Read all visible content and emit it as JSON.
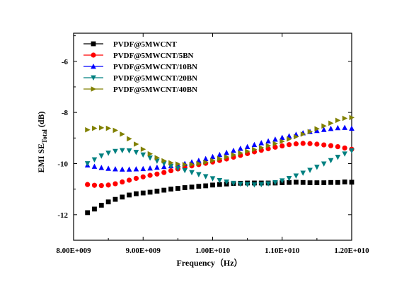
{
  "chart_data": {
    "type": "scatter",
    "title": "",
    "xlabel": "Frequency（Hz）",
    "ylabel_main": "EMI SE",
    "ylabel_sub": "Total",
    "ylabel_unit": " (dB)",
    "xlim": [
      8000000000,
      12000000000
    ],
    "ylim": [
      -13,
      -4.9
    ],
    "xticks": [
      8000000000,
      9000000000,
      10000000000,
      11000000000,
      12000000000
    ],
    "xtick_labels": [
      "8.00E+009",
      "9.00E+009",
      "1.00E+010",
      "1.10E+010",
      "1.20E+010"
    ],
    "yticks": [
      -12,
      -10,
      -8,
      -6
    ],
    "ytick_labels": [
      "-12",
      "-10",
      "-8",
      "-6"
    ],
    "legend_position": "top-left",
    "series": [
      {
        "name": "PVDF@5MWCNT",
        "color": "#000000",
        "marker": "square",
        "x": [
          8200000000.0,
          8300000000.0,
          8400000000.0,
          8500000000.0,
          8600000000.0,
          8700000000.0,
          8800000000.0,
          8900000000.0,
          9000000000.0,
          9100000000.0,
          9200000000.0,
          9300000000.0,
          9400000000.0,
          9500000000.0,
          9600000000.0,
          9700000000.0,
          9800000000.0,
          9900000000.0,
          10000000000.0,
          10100000000.0,
          10200000000.0,
          10300000000.0,
          10400000000.0,
          10500000000.0,
          10600000000.0,
          10700000000.0,
          10800000000.0,
          10900000000.0,
          11000000000.0,
          11100000000.0,
          11200000000.0,
          11300000000.0,
          11400000000.0,
          11500000000.0,
          11600000000.0,
          11700000000.0,
          11800000000.0,
          11900000000.0,
          12000000000.0
        ],
        "y": [
          -11.92,
          -11.78,
          -11.63,
          -11.5,
          -11.4,
          -11.31,
          -11.23,
          -11.18,
          -11.15,
          -11.12,
          -11.08,
          -11.04,
          -11.0,
          -10.97,
          -10.94,
          -10.92,
          -10.89,
          -10.87,
          -10.84,
          -10.82,
          -10.8,
          -10.78,
          -10.77,
          -10.76,
          -10.76,
          -10.76,
          -10.76,
          -10.76,
          -10.75,
          -10.74,
          -10.73,
          -10.74,
          -10.75,
          -10.75,
          -10.75,
          -10.74,
          -10.74,
          -10.72,
          -10.73
        ]
      },
      {
        "name": "PVDF@5MWCNT/5BN",
        "color": "#ff0000",
        "marker": "circle",
        "x": [
          8200000000.0,
          8300000000.0,
          8400000000.0,
          8500000000.0,
          8600000000.0,
          8700000000.0,
          8800000000.0,
          8900000000.0,
          9000000000.0,
          9100000000.0,
          9200000000.0,
          9300000000.0,
          9400000000.0,
          9500000000.0,
          9600000000.0,
          9700000000.0,
          9800000000.0,
          9900000000.0,
          10000000000.0,
          10100000000.0,
          10200000000.0,
          10300000000.0,
          10400000000.0,
          10500000000.0,
          10600000000.0,
          10700000000.0,
          10800000000.0,
          10900000000.0,
          11000000000.0,
          11100000000.0,
          11200000000.0,
          11300000000.0,
          11400000000.0,
          11500000000.0,
          11600000000.0,
          11700000000.0,
          11800000000.0,
          11900000000.0,
          12000000000.0
        ],
        "y": [
          -10.82,
          -10.85,
          -10.86,
          -10.84,
          -10.79,
          -10.72,
          -10.65,
          -10.58,
          -10.52,
          -10.46,
          -10.41,
          -10.35,
          -10.28,
          -10.21,
          -10.15,
          -10.09,
          -10.04,
          -9.99,
          -9.94,
          -9.88,
          -9.82,
          -9.75,
          -9.68,
          -9.61,
          -9.54,
          -9.48,
          -9.42,
          -9.36,
          -9.31,
          -9.26,
          -9.23,
          -9.21,
          -9.22,
          -9.24,
          -9.27,
          -9.3,
          -9.34,
          -9.39,
          -9.44
        ]
      },
      {
        "name": "PVDF@5MWCNT/10BN",
        "color": "#0000ff",
        "marker": "triangle-up",
        "x": [
          8200000000.0,
          8300000000.0,
          8400000000.0,
          8500000000.0,
          8600000000.0,
          8700000000.0,
          8800000000.0,
          8900000000.0,
          9000000000.0,
          9100000000.0,
          9200000000.0,
          9300000000.0,
          9400000000.0,
          9500000000.0,
          9600000000.0,
          9700000000.0,
          9800000000.0,
          9900000000.0,
          10000000000.0,
          10100000000.0,
          10200000000.0,
          10300000000.0,
          10400000000.0,
          10500000000.0,
          10600000000.0,
          10700000000.0,
          10800000000.0,
          10900000000.0,
          11000000000.0,
          11100000000.0,
          11200000000.0,
          11300000000.0,
          11400000000.0,
          11500000000.0,
          11600000000.0,
          11700000000.0,
          11800000000.0,
          11900000000.0,
          12000000000.0
        ],
        "y": [
          -10.06,
          -10.11,
          -10.16,
          -10.19,
          -10.21,
          -10.22,
          -10.22,
          -10.21,
          -10.2,
          -10.18,
          -10.15,
          -10.12,
          -10.09,
          -10.05,
          -10.0,
          -9.94,
          -9.88,
          -9.81,
          -9.73,
          -9.65,
          -9.57,
          -9.49,
          -9.41,
          -9.34,
          -9.26,
          -9.19,
          -9.12,
          -9.05,
          -8.98,
          -8.92,
          -8.86,
          -8.8,
          -8.75,
          -8.71,
          -8.67,
          -8.63,
          -8.6,
          -8.59,
          -8.62
        ]
      },
      {
        "name": "PVDF@5MWCNT/20BN",
        "color": "#008080",
        "marker": "triangle-down",
        "x": [
          8200000000.0,
          8300000000.0,
          8400000000.0,
          8500000000.0,
          8600000000.0,
          8700000000.0,
          8800000000.0,
          8900000000.0,
          9000000000.0,
          9100000000.0,
          9200000000.0,
          9300000000.0,
          9400000000.0,
          9500000000.0,
          9600000000.0,
          9700000000.0,
          9800000000.0,
          9900000000.0,
          10000000000.0,
          10100000000.0,
          10200000000.0,
          10300000000.0,
          10400000000.0,
          10500000000.0,
          10600000000.0,
          10700000000.0,
          10800000000.0,
          10900000000.0,
          11000000000.0,
          11100000000.0,
          11200000000.0,
          11300000000.0,
          11400000000.0,
          11500000000.0,
          11600000000.0,
          11700000000.0,
          11800000000.0,
          11900000000.0,
          12000000000.0
        ],
        "y": [
          -10.0,
          -9.85,
          -9.7,
          -9.59,
          -9.52,
          -9.49,
          -9.5,
          -9.56,
          -9.66,
          -9.78,
          -9.9,
          -10.0,
          -10.1,
          -10.19,
          -10.27,
          -10.35,
          -10.43,
          -10.51,
          -10.59,
          -10.66,
          -10.72,
          -10.77,
          -10.8,
          -10.82,
          -10.83,
          -10.82,
          -10.79,
          -10.74,
          -10.67,
          -10.58,
          -10.48,
          -10.37,
          -10.26,
          -10.14,
          -10.01,
          -9.88,
          -9.75,
          -9.62,
          -9.5
        ]
      },
      {
        "name": "PVDF@5MWCNT/40BN",
        "color": "#808000",
        "marker": "triangle-right",
        "x": [
          8200000000.0,
          8300000000.0,
          8400000000.0,
          8500000000.0,
          8600000000.0,
          8700000000.0,
          8800000000.0,
          8900000000.0,
          9000000000.0,
          9100000000.0,
          9200000000.0,
          9300000000.0,
          9400000000.0,
          9500000000.0,
          9600000000.0,
          9700000000.0,
          9800000000.0,
          9900000000.0,
          10000000000.0,
          10100000000.0,
          10200000000.0,
          10300000000.0,
          10400000000.0,
          10500000000.0,
          10600000000.0,
          10700000000.0,
          10800000000.0,
          10900000000.0,
          11000000000.0,
          11100000000.0,
          11200000000.0,
          11300000000.0,
          11400000000.0,
          11500000000.0,
          11600000000.0,
          11700000000.0,
          11800000000.0,
          11900000000.0,
          12000000000.0
        ],
        "y": [
          -8.68,
          -8.62,
          -8.6,
          -8.62,
          -8.7,
          -8.85,
          -9.03,
          -9.24,
          -9.44,
          -9.62,
          -9.77,
          -9.89,
          -9.97,
          -10.02,
          -10.04,
          -10.03,
          -10.0,
          -9.95,
          -9.88,
          -9.81,
          -9.74,
          -9.66,
          -9.59,
          -9.52,
          -9.45,
          -9.38,
          -9.3,
          -9.22,
          -9.13,
          -9.04,
          -8.95,
          -8.85,
          -8.75,
          -8.64,
          -8.53,
          -8.42,
          -8.31,
          -8.23,
          -8.2
        ]
      }
    ]
  }
}
